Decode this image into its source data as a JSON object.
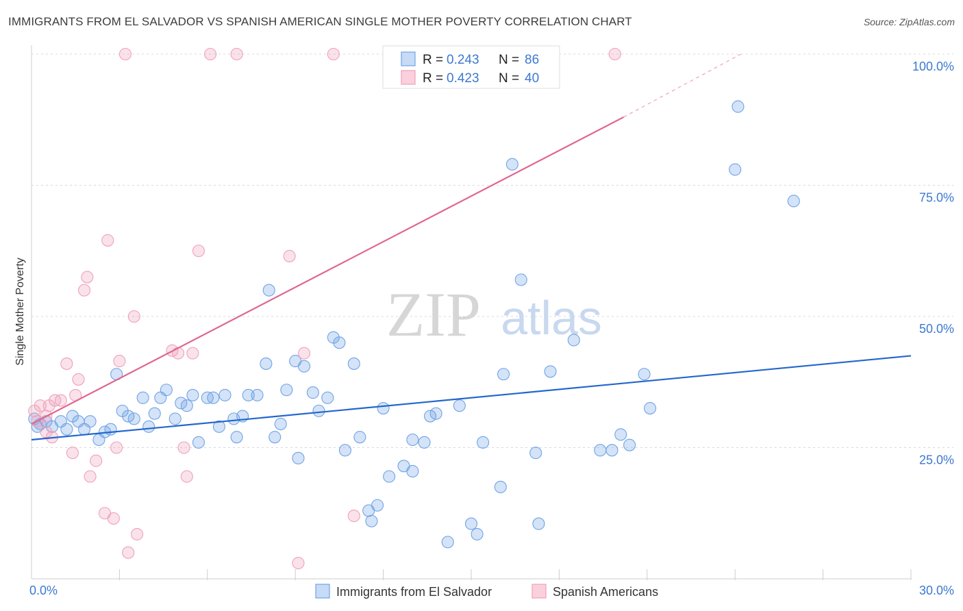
{
  "title": "IMMIGRANTS FROM EL SALVADOR VS SPANISH AMERICAN SINGLE MOTHER POVERTY CORRELATION CHART",
  "source": "Source: ZipAtlas.com",
  "watermark": {
    "zip": "ZIP",
    "atlas": "atlas"
  },
  "colors": {
    "blue": "#6fa3e6",
    "blue_line": "#2266cc",
    "pink": "#f0a0b8",
    "pink_line": "#e06690",
    "axis_label": "#3b78d0",
    "grid": "#d8d8d8"
  },
  "legend": {
    "items": [
      {
        "r_label": "R = ",
        "r_value": "0.243",
        "n_label": "N = ",
        "n_value": "86"
      },
      {
        "r_label": "R = ",
        "r_value": "0.423",
        "n_label": "N = ",
        "n_value": "40"
      }
    ]
  },
  "chart_data": {
    "type": "scatter",
    "xlabel": "",
    "ylabel": "Single Mother Poverty",
    "xlim": [
      0,
      30
    ],
    "ylim": [
      0,
      100
    ],
    "x_ticks": [
      "0.0%",
      "30.0%"
    ],
    "y_ticks": [
      {
        "value": 25,
        "label": "25.0%"
      },
      {
        "value": 50,
        "label": "50.0%"
      },
      {
        "value": 75,
        "label": "75.0%"
      },
      {
        "value": 100,
        "label": "100.0%"
      }
    ],
    "series": [
      {
        "name": "Immigrants from El Salvador",
        "color": "blue",
        "trend": {
          "x0": 0,
          "y0": 26.5,
          "x1": 30,
          "y1": 42.5
        },
        "points": [
          [
            0.1,
            30.5
          ],
          [
            0.2,
            29
          ],
          [
            0.3,
            29.5
          ],
          [
            0.5,
            30
          ],
          [
            0.7,
            29
          ],
          [
            1.0,
            30
          ],
          [
            1.2,
            28.5
          ],
          [
            1.4,
            31
          ],
          [
            1.6,
            30
          ],
          [
            1.8,
            28.5
          ],
          [
            2.0,
            30
          ],
          [
            2.3,
            26.5
          ],
          [
            2.5,
            28
          ],
          [
            2.7,
            28.5
          ],
          [
            2.9,
            39
          ],
          [
            3.1,
            32
          ],
          [
            3.3,
            31
          ],
          [
            3.5,
            30.5
          ],
          [
            3.8,
            34.5
          ],
          [
            4.0,
            29
          ],
          [
            4.2,
            31.5
          ],
          [
            4.4,
            34.5
          ],
          [
            4.6,
            36
          ],
          [
            4.9,
            30.5
          ],
          [
            5.1,
            33.5
          ],
          [
            5.3,
            33
          ],
          [
            5.5,
            35
          ],
          [
            5.7,
            26
          ],
          [
            6.0,
            34.5
          ],
          [
            6.2,
            34.5
          ],
          [
            6.4,
            29
          ],
          [
            6.6,
            35
          ],
          [
            6.9,
            30.5
          ],
          [
            7.0,
            27
          ],
          [
            7.2,
            31
          ],
          [
            7.4,
            35
          ],
          [
            7.7,
            35
          ],
          [
            8.0,
            41
          ],
          [
            8.1,
            55
          ],
          [
            8.3,
            27
          ],
          [
            8.5,
            29.5
          ],
          [
            8.7,
            36
          ],
          [
            9.0,
            41.5
          ],
          [
            9.1,
            23
          ],
          [
            9.3,
            40.5
          ],
          [
            9.6,
            35.5
          ],
          [
            9.8,
            32
          ],
          [
            10.1,
            34.5
          ],
          [
            10.3,
            46
          ],
          [
            10.5,
            45
          ],
          [
            10.7,
            24.5
          ],
          [
            11.0,
            41
          ],
          [
            11.2,
            27
          ],
          [
            11.5,
            13
          ],
          [
            11.6,
            11
          ],
          [
            11.8,
            14
          ],
          [
            12.0,
            32.5
          ],
          [
            12.2,
            19.5
          ],
          [
            12.7,
            21.5
          ],
          [
            13.0,
            26.5
          ],
          [
            13.0,
            20.5
          ],
          [
            13.4,
            26
          ],
          [
            13.6,
            31
          ],
          [
            13.8,
            31.5
          ],
          [
            14.2,
            7
          ],
          [
            14.6,
            33
          ],
          [
            15.0,
            10.5
          ],
          [
            15.2,
            8.5
          ],
          [
            15.4,
            26
          ],
          [
            16.0,
            17.5
          ],
          [
            16.1,
            39
          ],
          [
            16.4,
            79
          ],
          [
            16.7,
            57
          ],
          [
            17.2,
            24
          ],
          [
            17.3,
            10.5
          ],
          [
            17.7,
            39.5
          ],
          [
            18.5,
            45.5
          ],
          [
            19.4,
            24.5
          ],
          [
            19.8,
            24.5
          ],
          [
            20.1,
            27.5
          ],
          [
            20.4,
            25.5
          ],
          [
            20.9,
            39
          ],
          [
            21.1,
            32.5
          ],
          [
            24.0,
            78
          ],
          [
            24.1,
            90
          ],
          [
            26.0,
            72
          ]
        ]
      },
      {
        "name": "Spanish Americans",
        "color": "pink",
        "trend": {
          "x0": 0,
          "y0": 29.5,
          "x1": 20.2,
          "y1": 88,
          "dash_x1": 24.2,
          "dash_y1": 100
        },
        "points": [
          [
            0.1,
            32
          ],
          [
            0.3,
            33
          ],
          [
            0.5,
            31
          ],
          [
            0.6,
            33
          ],
          [
            0.7,
            27
          ],
          [
            0.8,
            34
          ],
          [
            1.0,
            34
          ],
          [
            1.2,
            41
          ],
          [
            1.4,
            24
          ],
          [
            1.5,
            35
          ],
          [
            1.6,
            38
          ],
          [
            1.8,
            55
          ],
          [
            1.9,
            57.5
          ],
          [
            2.0,
            19.5
          ],
          [
            2.2,
            22.5
          ],
          [
            2.5,
            12.5
          ],
          [
            2.6,
            64.5
          ],
          [
            2.8,
            11.5
          ],
          [
            2.9,
            25
          ],
          [
            3.0,
            41.5
          ],
          [
            3.2,
            100
          ],
          [
            3.3,
            5
          ],
          [
            3.5,
            50
          ],
          [
            3.6,
            8.5
          ],
          [
            4.8,
            43.5
          ],
          [
            5.0,
            43
          ],
          [
            5.2,
            25
          ],
          [
            5.3,
            19.5
          ],
          [
            5.5,
            43
          ],
          [
            5.7,
            62.5
          ],
          [
            6.1,
            100
          ],
          [
            7.0,
            100
          ],
          [
            8.8,
            61.5
          ],
          [
            9.1,
            3
          ],
          [
            9.3,
            43
          ],
          [
            10.3,
            100
          ],
          [
            11.0,
            12
          ],
          [
            19.9,
            100
          ],
          [
            0.2,
            30
          ],
          [
            0.5,
            28
          ]
        ]
      }
    ]
  }
}
